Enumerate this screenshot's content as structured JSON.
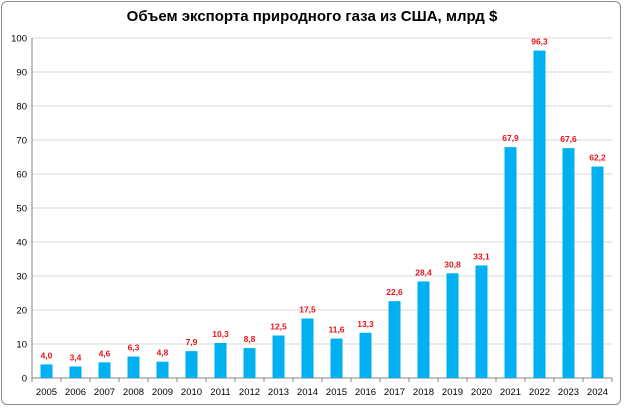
{
  "chart_data": {
    "type": "bar",
    "title": "Объем экспорта природного газа из США, млрд $",
    "categories": [
      "2005",
      "2006",
      "2007",
      "2008",
      "2009",
      "2010",
      "2011",
      "2012",
      "2013",
      "2014",
      "2015",
      "2016",
      "2017",
      "2018",
      "2019",
      "2020",
      "2021",
      "2022",
      "2023",
      "2024"
    ],
    "values": [
      4.0,
      3.4,
      4.6,
      6.3,
      4.8,
      7.9,
      10.3,
      8.8,
      12.5,
      17.5,
      11.6,
      13.3,
      22.6,
      28.4,
      30.8,
      33.1,
      67.9,
      96.3,
      67.6,
      62.2
    ],
    "data_labels": [
      "4,0",
      "3,4",
      "4,6",
      "6,3",
      "4,8",
      "7,9",
      "10,3",
      "8,8",
      "12,5",
      "17,5",
      "11,6",
      "13,3",
      "22,6",
      "28,4",
      "30,8",
      "33,1",
      "67,9",
      "96,3",
      "67,6",
      "62,2"
    ],
    "y_ticks": [
      "0",
      "10",
      "20",
      "30",
      "40",
      "50",
      "60",
      "70",
      "80",
      "90",
      "100"
    ],
    "ylim": [
      0,
      100
    ],
    "grid": true,
    "legend": "none",
    "bar_color": "#00b0f0",
    "label_color": "#e8141c",
    "grid_color": "#d9d9d9"
  }
}
